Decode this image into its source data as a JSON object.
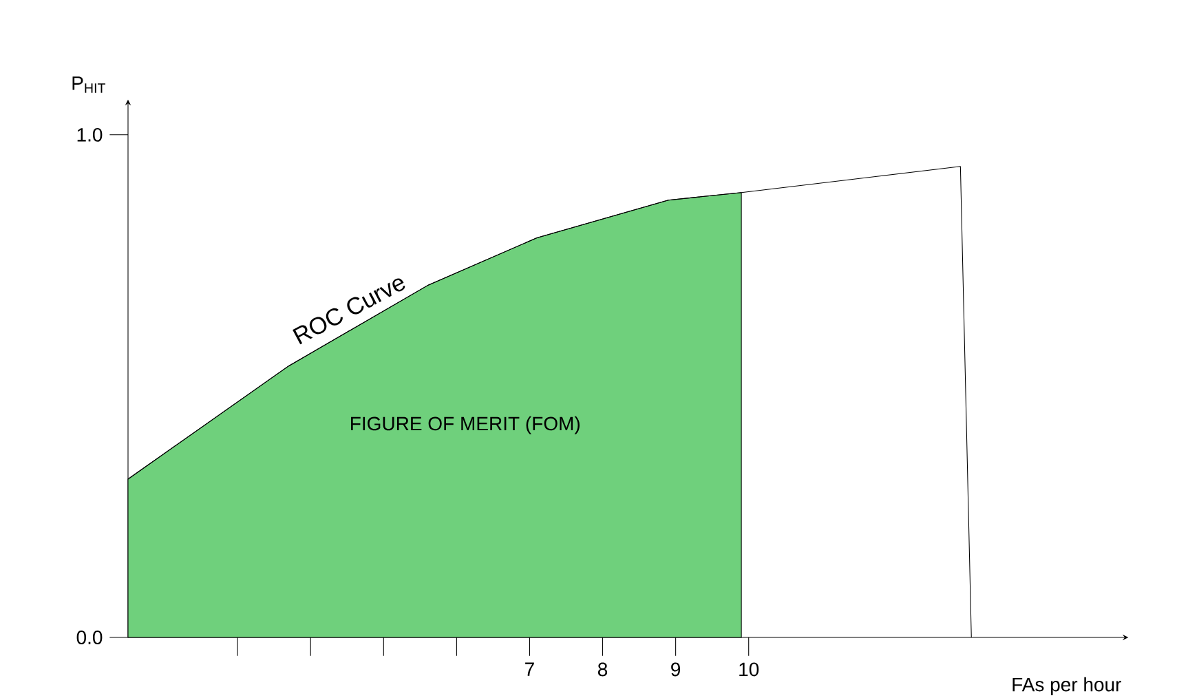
{
  "chart_data": {
    "type": "line",
    "xlabel": "FAs per hour",
    "ylabel": "P$_{HIT}$",
    "xlim": [
      1.5,
      15.2
    ],
    "ylim": [
      0,
      1.07
    ],
    "xticks": [
      {
        "value": 3,
        "label": null
      },
      {
        "value": 4,
        "label": null
      },
      {
        "value": 5,
        "label": null
      },
      {
        "value": 6,
        "label": null
      },
      7,
      8,
      9,
      10
    ],
    "yticks": [
      {
        "value": 0,
        "label": "0.0"
      },
      {
        "value": 1,
        "label": "1.0"
      }
    ],
    "series": [
      {
        "type": "area",
        "name": "FIGURE OF MERIT (FOM)",
        "color": "#6fd07c",
        "x": [
          1.5,
          3.7,
          5.6,
          7.1,
          8.9,
          9.9
        ],
        "values": [
          0.315,
          0.54,
          0.7,
          0.795,
          0.87,
          0.885
        ]
      },
      {
        "name": "ROC Curve",
        "color": "#000000",
        "x": [
          1.5,
          3.7,
          5.6,
          7.1,
          8.9,
          9.9,
          12.9,
          13.05
        ],
        "values": [
          0.315,
          0.54,
          0.7,
          0.795,
          0.87,
          0.885,
          0.937,
          0
        ]
      }
    ],
    "grid": false,
    "legend": false,
    "marker": "none",
    "line_style": "solid"
  }
}
